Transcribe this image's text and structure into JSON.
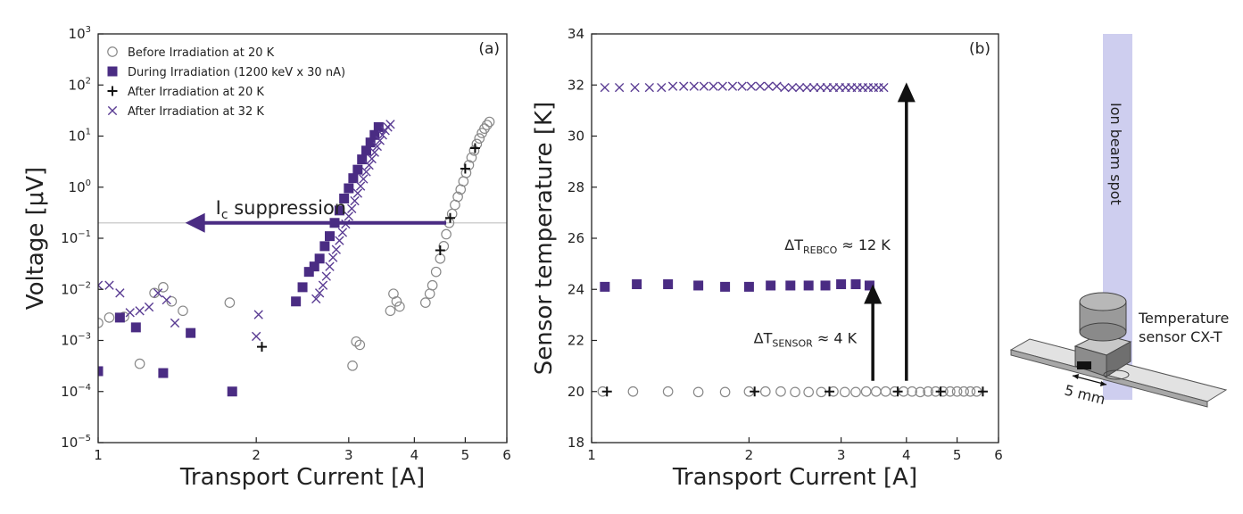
{
  "chart_data": [
    {
      "type": "scatter",
      "panel_label": "(a)",
      "xlabel": "Transport Current [A]",
      "ylabel": "Voltage [",
      "ylabel_unit": "μV",
      "ylabel_close": "]",
      "xscale": "log",
      "yscale": "log",
      "xlim": [
        1,
        6
      ],
      "ylim": [
        1e-05,
        1000
      ],
      "xticks": [
        1,
        2,
        3,
        4,
        5,
        6
      ],
      "xtick_labels": [
        "1",
        "2",
        "3",
        "4",
        "5",
        "6"
      ],
      "yticks": [
        1e-05,
        0.0001,
        0.001,
        0.01,
        0.1,
        1,
        10,
        100,
        1000
      ],
      "ytick_labels": [
        "10",
        "10",
        "10",
        "10",
        "10",
        "10",
        "10",
        "10",
        "10"
      ],
      "ytick_exponents": [
        "−5",
        "−4",
        "−3",
        "−2",
        "−1",
        "0",
        "1",
        "2",
        "3"
      ],
      "grid": false,
      "legend_position": "top-left",
      "threshold_line": {
        "y": 0.2,
        "color": "#d0d0d0"
      },
      "annotation": {
        "label_main": "I",
        "label_sub": "c",
        "label_rest": " suppression",
        "arrow_from_x": 4.6,
        "arrow_to_x": 1.5,
        "y": 0.2,
        "color": "#4a2c83"
      },
      "series": [
        {
          "name": "Before Irradiation at 20 K",
          "marker": "circle-open",
          "color": "#888888",
          "x": [
            1.0,
            1.05,
            1.12,
            1.2,
            1.28,
            1.33,
            1.38,
            1.45,
            1.78,
            3.05,
            3.1,
            3.15,
            3.6,
            3.65,
            3.7,
            3.75,
            4.2,
            4.28,
            4.33,
            4.4,
            4.48,
            4.55,
            4.6,
            4.66,
            4.72,
            4.78,
            4.84,
            4.9,
            4.96,
            5.02,
            5.08,
            5.14,
            5.2,
            5.26,
            5.32,
            5.38,
            5.44,
            5.5,
            5.56
          ],
          "y": [
            0.0022,
            0.0028,
            0.0029,
            0.00035,
            0.0085,
            0.011,
            0.0058,
            0.0038,
            0.0055,
            0.00032,
            0.00095,
            0.00082,
            0.0038,
            0.0082,
            0.0058,
            0.0046,
            0.0055,
            0.0082,
            0.012,
            0.022,
            0.04,
            0.07,
            0.12,
            0.2,
            0.3,
            0.45,
            0.65,
            0.9,
            1.3,
            1.9,
            2.7,
            3.8,
            5.2,
            7.0,
            9.0,
            11.5,
            14.0,
            16.5,
            19.0
          ]
        },
        {
          "name": "During Irradiation (1200 keV x 30 nA)",
          "marker": "square-filled",
          "color": "#4a2c83",
          "x": [
            1.0,
            1.1,
            1.18,
            1.33,
            1.5,
            1.8,
            2.38,
            2.45,
            2.52,
            2.58,
            2.64,
            2.7,
            2.76,
            2.82,
            2.88,
            2.94,
            3.0,
            3.06,
            3.12,
            3.18,
            3.24,
            3.3,
            3.36,
            3.42
          ],
          "y": [
            0.00025,
            0.0028,
            0.0018,
            0.00023,
            0.0014,
            0.0001,
            0.0058,
            0.011,
            0.022,
            0.028,
            0.04,
            0.07,
            0.11,
            0.2,
            0.35,
            0.6,
            0.95,
            1.5,
            2.2,
            3.5,
            5.2,
            7.5,
            10.5,
            15.0
          ]
        },
        {
          "name": "After Irradiation at 20 K",
          "marker": "plus",
          "color": "#111111",
          "x": [
            2.05,
            4.48,
            4.68,
            5.0,
            5.22
          ],
          "y": [
            0.00075,
            0.058,
            0.25,
            2.3,
            5.8
          ]
        },
        {
          "name": "After Irradiation at 32 K",
          "marker": "x",
          "color": "#5a3c93",
          "x": [
            1.0,
            1.05,
            1.1,
            1.15,
            1.2,
            1.25,
            1.3,
            1.35,
            1.4,
            2.0,
            2.02,
            2.6,
            2.64,
            2.68,
            2.72,
            2.76,
            2.8,
            2.84,
            2.88,
            2.92,
            2.96,
            3.0,
            3.04,
            3.08,
            3.12,
            3.16,
            3.2,
            3.24,
            3.28,
            3.32,
            3.36,
            3.4,
            3.44,
            3.48,
            3.52,
            3.56,
            3.6
          ],
          "y": [
            0.012,
            0.012,
            0.0085,
            0.0035,
            0.0038,
            0.0045,
            0.0085,
            0.0062,
            0.0022,
            0.0012,
            0.0032,
            0.0065,
            0.0085,
            0.012,
            0.018,
            0.028,
            0.042,
            0.06,
            0.09,
            0.13,
            0.19,
            0.27,
            0.38,
            0.54,
            0.76,
            1.05,
            1.45,
            2.0,
            2.7,
            3.6,
            4.8,
            6.3,
            8.2,
            10.5,
            12.8,
            15.0,
            17.0
          ]
        }
      ]
    },
    {
      "type": "scatter",
      "panel_label": "(b)",
      "xlabel": "Transport Current [A]",
      "ylabel": "Sensor temperature [K]",
      "xscale": "log",
      "yscale": "linear",
      "xlim": [
        1,
        6
      ],
      "ylim": [
        18,
        34
      ],
      "xticks": [
        1,
        2,
        3,
        4,
        5,
        6
      ],
      "xtick_labels": [
        "1",
        "2",
        "3",
        "4",
        "5",
        "6"
      ],
      "yticks": [
        18,
        20,
        22,
        24,
        26,
        28,
        30,
        32,
        34
      ],
      "ytick_labels": [
        "18",
        "20",
        "22",
        "24",
        "26",
        "28",
        "30",
        "32",
        "34"
      ],
      "grid": false,
      "annotations": [
        {
          "label_main": "ΔT",
          "label_sub": "SENSOR",
          "label_rest": " ≈ 4 K",
          "arrow_x": 3.45,
          "arrow_from_y": 20,
          "arrow_to_y": 24.2
        },
        {
          "label_main": "ΔT",
          "label_sub": "REBCO",
          "label_rest": " ≈ 12 K",
          "arrow_x": 4.0,
          "arrow_from_y": 20,
          "arrow_to_y": 32.1
        }
      ],
      "series": [
        {
          "name": "Before Irradiation at 20 K",
          "marker": "circle-open",
          "color": "#888888",
          "x": [
            1.05,
            1.2,
            1.4,
            1.6,
            1.8,
            2.0,
            2.15,
            2.3,
            2.45,
            2.6,
            2.75,
            2.9,
            3.05,
            3.2,
            3.35,
            3.5,
            3.65,
            3.8,
            3.95,
            4.1,
            4.25,
            4.4,
            4.55,
            4.7,
            4.85,
            5.0,
            5.15,
            5.3,
            5.45
          ],
          "y": [
            20,
            20,
            20,
            19.98,
            19.98,
            20,
            20,
            20,
            19.98,
            19.98,
            19.98,
            20,
            19.98,
            19.98,
            20,
            20,
            20,
            20,
            20,
            20,
            19.98,
            20,
            20,
            20,
            20,
            20,
            20,
            20,
            20
          ]
        },
        {
          "name": "During Irradiation",
          "marker": "square-filled",
          "color": "#4a2c83",
          "x": [
            1.06,
            1.22,
            1.4,
            1.6,
            1.8,
            2.0,
            2.2,
            2.4,
            2.6,
            2.8,
            3.0,
            3.2,
            3.4
          ],
          "y": [
            24.1,
            24.2,
            24.2,
            24.15,
            24.1,
            24.1,
            24.15,
            24.15,
            24.15,
            24.15,
            24.2,
            24.2,
            24.15
          ]
        },
        {
          "name": "After Irradiation at 20 K",
          "marker": "plus",
          "color": "#111111",
          "x": [
            1.07,
            2.05,
            2.85,
            3.85,
            4.65,
            5.6
          ],
          "y": [
            20,
            20,
            20,
            20,
            20,
            20
          ]
        },
        {
          "name": "After Irradiation at 32 K",
          "marker": "x",
          "color": "#5a3c93",
          "x": [
            1.06,
            1.13,
            1.21,
            1.29,
            1.36,
            1.43,
            1.5,
            1.57,
            1.64,
            1.71,
            1.78,
            1.86,
            1.94,
            2.02,
            2.1,
            2.18,
            2.26,
            2.34,
            2.42,
            2.5,
            2.58,
            2.66,
            2.74,
            2.82,
            2.9,
            2.98,
            3.06,
            3.14,
            3.22,
            3.3,
            3.38,
            3.46,
            3.54,
            3.62
          ],
          "y": [
            31.9,
            31.9,
            31.9,
            31.9,
            31.9,
            31.95,
            31.95,
            31.95,
            31.95,
            31.95,
            31.95,
            31.95,
            31.95,
            31.95,
            31.95,
            31.95,
            31.95,
            31.9,
            31.9,
            31.9,
            31.9,
            31.9,
            31.9,
            31.9,
            31.9,
            31.9,
            31.9,
            31.9,
            31.9,
            31.9,
            31.9,
            31.9,
            31.9,
            31.9
          ]
        }
      ]
    }
  ],
  "schematic": {
    "beam_label": "Ion beam spot",
    "sensor_label_line1": "Temperature",
    "sensor_label_line2": "sensor CX-T",
    "dimension_label": "5 mm"
  }
}
